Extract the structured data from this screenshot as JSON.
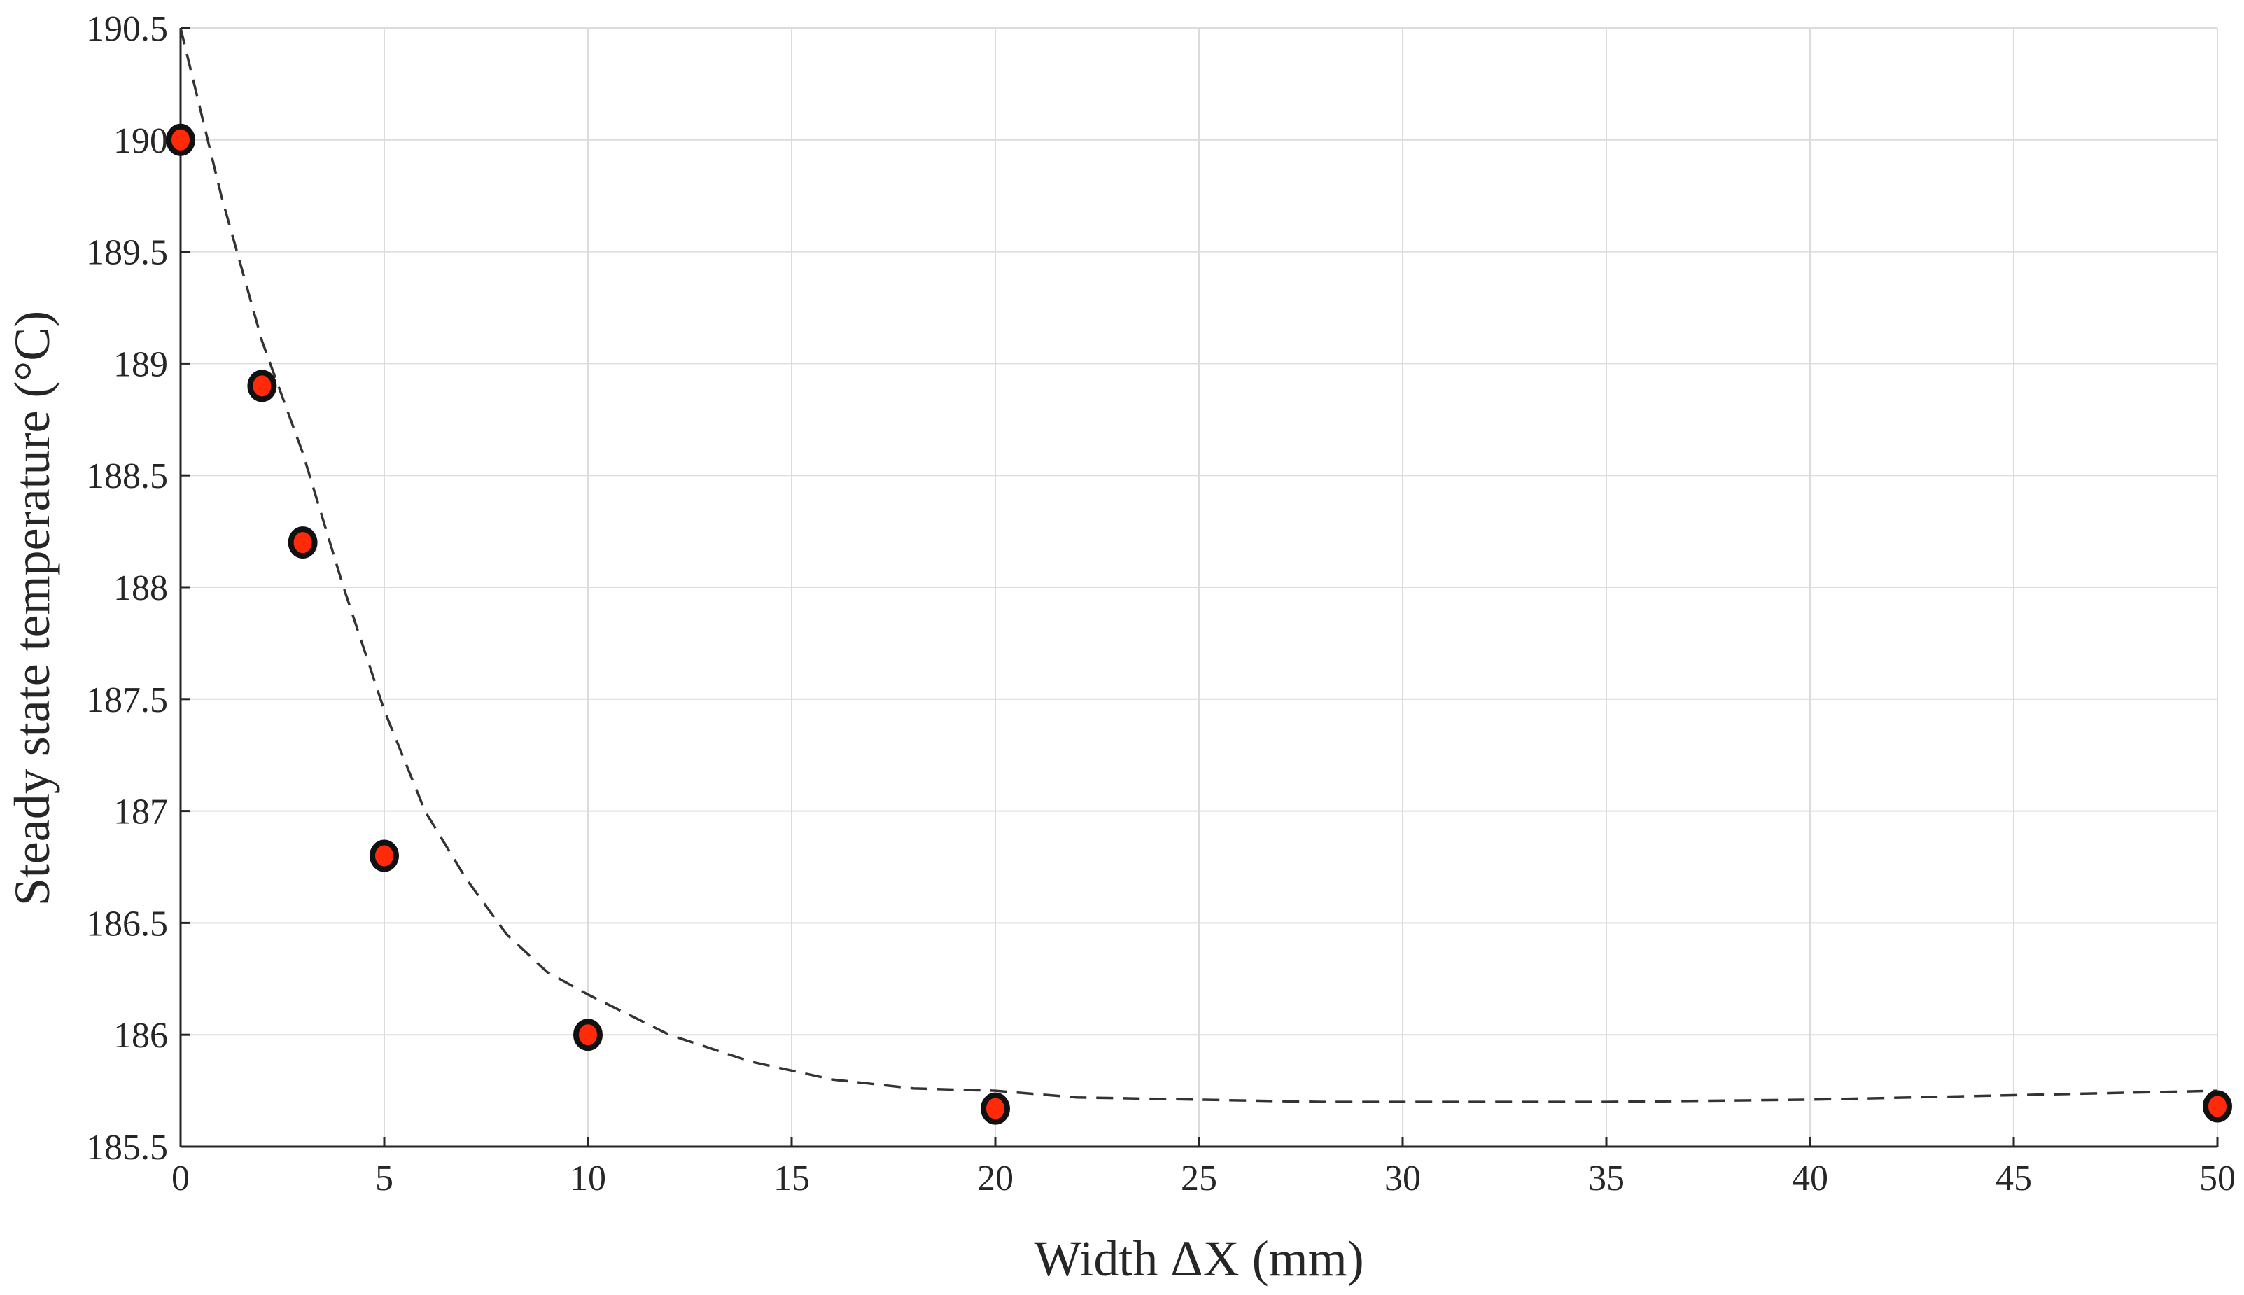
{
  "chart_data": {
    "type": "scatter",
    "title": "",
    "xlabel": "Width ΔX (mm)",
    "ylabel": "Steady state temperature (°C)",
    "xlim": [
      0,
      50
    ],
    "ylim": [
      185.5,
      190.5
    ],
    "x_ticks": [
      "0",
      "5",
      "10",
      "15",
      "20",
      "25",
      "30",
      "35",
      "40",
      "45",
      "50"
    ],
    "y_ticks": [
      "185.5",
      "186",
      "186.5",
      "187",
      "187.5",
      "188",
      "188.5",
      "189",
      "189.5",
      "190",
      "190.5"
    ],
    "grid": true,
    "series": [
      {
        "type": "scatter",
        "color": "#ff2a0a",
        "edge_color": "#111111",
        "x": [
          0,
          2,
          3,
          5,
          10,
          20,
          50
        ],
        "y": [
          190.0,
          188.9,
          188.2,
          186.8,
          186.0,
          185.67,
          185.68
        ]
      },
      {
        "type": "line",
        "style": "dashed",
        "color": "#333333",
        "x": [
          0,
          1,
          2,
          3,
          4,
          5,
          6,
          7,
          8,
          9,
          10,
          12,
          14,
          16,
          18,
          20,
          22,
          25,
          28,
          30,
          35,
          40,
          45,
          50
        ],
        "y": [
          190.5,
          189.75,
          189.1,
          188.6,
          188.0,
          187.45,
          187.0,
          186.7,
          186.45,
          186.28,
          186.18,
          186.0,
          185.88,
          185.8,
          185.76,
          185.75,
          185.72,
          185.71,
          185.7,
          185.7,
          185.7,
          185.71,
          185.73,
          185.75
        ]
      }
    ]
  }
}
